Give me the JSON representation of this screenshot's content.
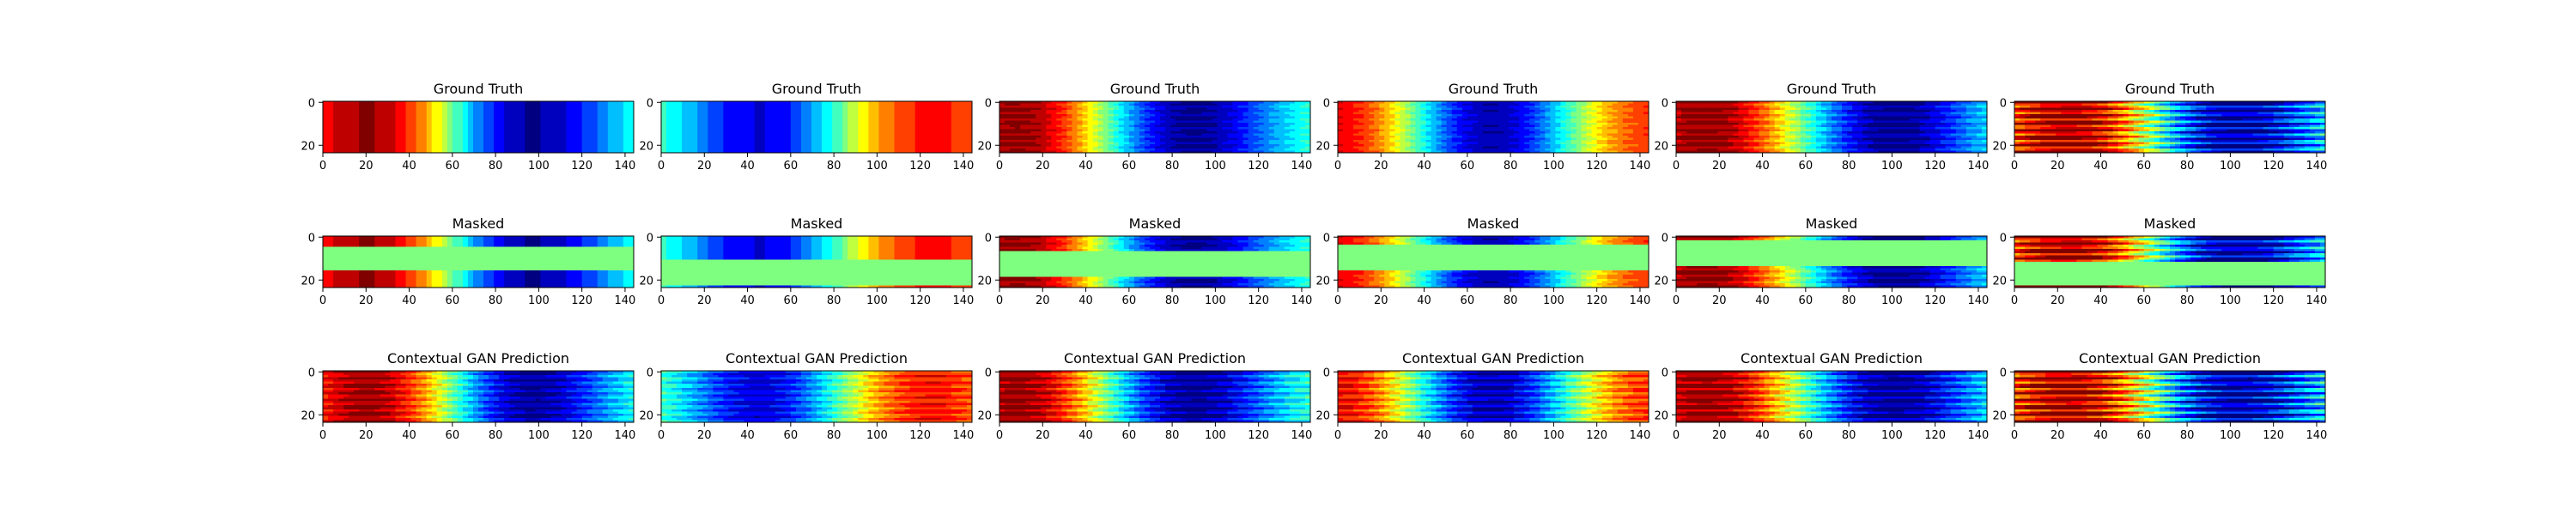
{
  "figure": {
    "x_ticks": [
      0,
      20,
      40,
      60,
      80,
      100,
      120,
      140
    ],
    "y_ticks": [
      0,
      20
    ],
    "mask_color": "#7fff7f"
  },
  "chart_data": [
    {
      "type": "heatmap",
      "title": "Ground Truth",
      "row": 0,
      "col": 0,
      "xlim": [
        0,
        144
      ],
      "ylim": [
        24,
        0
      ],
      "grid": false,
      "field": {
        "peaks": [
          [
            24,
            1
          ],
          [
            94,
            -1
          ]
        ],
        "wave": 0,
        "mask": null
      }
    },
    {
      "type": "heatmap",
      "title": "Ground Truth",
      "row": 0,
      "col": 1,
      "xlim": [
        0,
        144
      ],
      "ylim": [
        24,
        0
      ],
      "grid": false,
      "field": {
        "peaks": [
          [
            2,
            0.15
          ],
          [
            45,
            -0.9
          ],
          [
            122,
            0.75
          ]
        ],
        "wave": 0,
        "mask": null
      }
    },
    {
      "type": "heatmap",
      "title": "Ground Truth",
      "row": 0,
      "col": 2,
      "xlim": [
        0,
        144
      ],
      "ylim": [
        24,
        0
      ],
      "grid": false,
      "field": {
        "peaks": [
          [
            10,
            1
          ],
          [
            88,
            -1
          ]
        ],
        "wave": 0.05,
        "mask": null
      }
    },
    {
      "type": "heatmap",
      "title": "Ground Truth",
      "row": 0,
      "col": 3,
      "xlim": [
        0,
        144
      ],
      "ylim": [
        24,
        0
      ],
      "grid": false,
      "field": {
        "peaks": [
          [
            2,
            0.85
          ],
          [
            70,
            -1
          ],
          [
            144,
            0.7
          ]
        ],
        "wave": 0.05,
        "mask": null
      }
    },
    {
      "type": "heatmap",
      "title": "Ground Truth",
      "row": 0,
      "col": 4,
      "xlim": [
        0,
        144
      ],
      "ylim": [
        24,
        0
      ],
      "grid": false,
      "field": {
        "peaks": [
          [
            15,
            1
          ],
          [
            100,
            -1
          ]
        ],
        "wave": 0.1,
        "mask": null
      }
    },
    {
      "type": "heatmap",
      "title": "Ground Truth",
      "row": 0,
      "col": 5,
      "xlim": [
        0,
        144
      ],
      "ylim": [
        24,
        0
      ],
      "grid": false,
      "field": {
        "peaks": [
          [
            28,
            1
          ],
          [
            100,
            -1
          ]
        ],
        "wave": 0.3,
        "mask": null
      }
    },
    {
      "type": "heatmap",
      "title": "Masked",
      "row": 1,
      "col": 0,
      "xlim": [
        0,
        144
      ],
      "ylim": [
        24,
        0
      ],
      "grid": false,
      "field": {
        "peaks": [
          [
            24,
            1
          ],
          [
            94,
            -1
          ]
        ],
        "wave": 0,
        "mask": [
          5,
          16
        ]
      }
    },
    {
      "type": "heatmap",
      "title": "Masked",
      "row": 1,
      "col": 1,
      "xlim": [
        0,
        144
      ],
      "ylim": [
        24,
        0
      ],
      "grid": false,
      "field": {
        "peaks": [
          [
            2,
            0.15
          ],
          [
            45,
            -0.9
          ],
          [
            122,
            0.75
          ]
        ],
        "wave": 0,
        "mask": [
          11,
          23
        ]
      }
    },
    {
      "type": "heatmap",
      "title": "Masked",
      "row": 1,
      "col": 2,
      "xlim": [
        0,
        144
      ],
      "ylim": [
        24,
        0
      ],
      "grid": false,
      "field": {
        "peaks": [
          [
            10,
            1
          ],
          [
            88,
            -1
          ]
        ],
        "wave": 0.05,
        "mask": [
          7,
          19
        ]
      }
    },
    {
      "type": "heatmap",
      "title": "Masked",
      "row": 1,
      "col": 3,
      "xlim": [
        0,
        144
      ],
      "ylim": [
        24,
        0
      ],
      "grid": false,
      "field": {
        "peaks": [
          [
            2,
            0.85
          ],
          [
            70,
            -1
          ],
          [
            144,
            0.7
          ]
        ],
        "wave": 0.05,
        "mask": [
          4,
          16
        ]
      }
    },
    {
      "type": "heatmap",
      "title": "Masked",
      "row": 1,
      "col": 4,
      "xlim": [
        0,
        144
      ],
      "ylim": [
        24,
        0
      ],
      "grid": false,
      "field": {
        "peaks": [
          [
            15,
            1
          ],
          [
            100,
            -1
          ]
        ],
        "wave": 0.1,
        "mask": [
          2,
          14
        ]
      }
    },
    {
      "type": "heatmap",
      "title": "Masked",
      "row": 1,
      "col": 5,
      "xlim": [
        0,
        144
      ],
      "ylim": [
        24,
        0
      ],
      "grid": false,
      "field": {
        "peaks": [
          [
            28,
            1
          ],
          [
            100,
            -1
          ]
        ],
        "wave": 0.3,
        "mask": [
          12,
          23
        ]
      }
    },
    {
      "type": "heatmap",
      "title": "Contextual GAN Prediction",
      "row": 2,
      "col": 0,
      "xlim": [
        0,
        144
      ],
      "ylim": [
        24,
        0
      ],
      "grid": false,
      "field": {
        "peaks": [
          [
            24,
            1
          ],
          [
            94,
            -1
          ]
        ],
        "wave": 0.12,
        "mask": null
      }
    },
    {
      "type": "heatmap",
      "title": "Contextual GAN Prediction",
      "row": 2,
      "col": 1,
      "xlim": [
        0,
        144
      ],
      "ylim": [
        24,
        0
      ],
      "grid": false,
      "field": {
        "peaks": [
          [
            2,
            0.15
          ],
          [
            45,
            -0.9
          ],
          [
            122,
            0.75
          ]
        ],
        "wave": 0.12,
        "mask": null
      }
    },
    {
      "type": "heatmap",
      "title": "Contextual GAN Prediction",
      "row": 2,
      "col": 2,
      "xlim": [
        0,
        144
      ],
      "ylim": [
        24,
        0
      ],
      "grid": false,
      "field": {
        "peaks": [
          [
            10,
            1
          ],
          [
            88,
            -1
          ]
        ],
        "wave": 0.15,
        "mask": null
      }
    },
    {
      "type": "heatmap",
      "title": "Contextual GAN Prediction",
      "row": 2,
      "col": 3,
      "xlim": [
        0,
        144
      ],
      "ylim": [
        24,
        0
      ],
      "grid": false,
      "field": {
        "peaks": [
          [
            2,
            0.85
          ],
          [
            70,
            -1
          ],
          [
            144,
            0.7
          ]
        ],
        "wave": 0.15,
        "mask": null
      }
    },
    {
      "type": "heatmap",
      "title": "Contextual GAN Prediction",
      "row": 2,
      "col": 4,
      "xlim": [
        0,
        144
      ],
      "ylim": [
        24,
        0
      ],
      "grid": false,
      "field": {
        "peaks": [
          [
            15,
            1
          ],
          [
            100,
            -1
          ]
        ],
        "wave": 0.18,
        "mask": null
      }
    },
    {
      "type": "heatmap",
      "title": "Contextual GAN Prediction",
      "row": 2,
      "col": 5,
      "xlim": [
        0,
        144
      ],
      "ylim": [
        24,
        0
      ],
      "grid": false,
      "field": {
        "peaks": [
          [
            28,
            1
          ],
          [
            100,
            -1
          ]
        ],
        "wave": 0.35,
        "mask": null
      }
    }
  ]
}
